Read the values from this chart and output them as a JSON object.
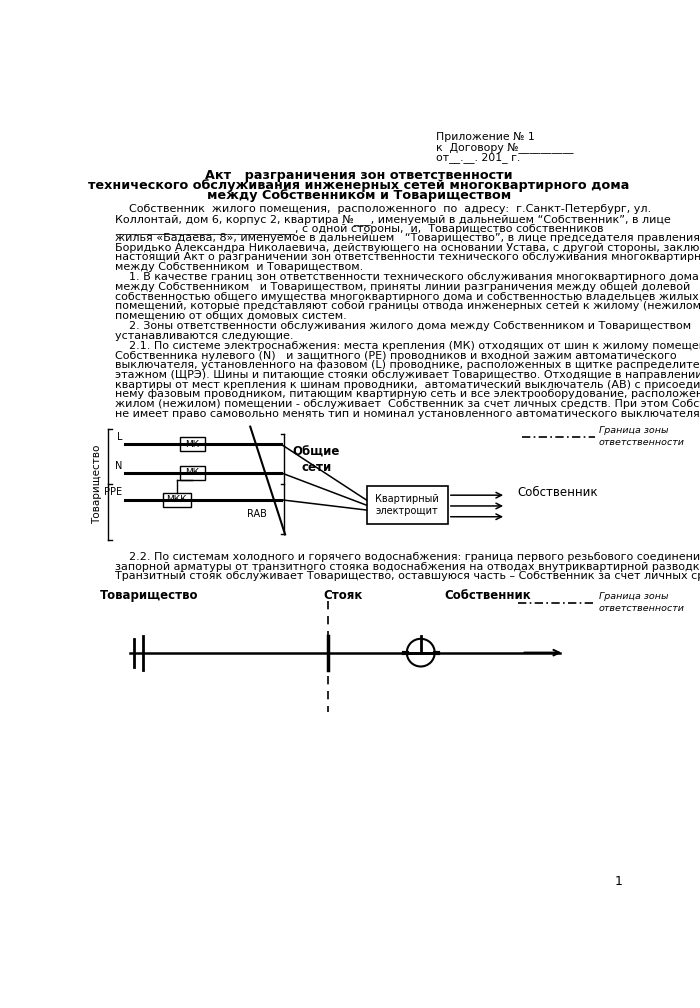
{
  "bg_color": "#ffffff",
  "text_color": "#000000",
  "appendix_lines": [
    "Приложение № 1",
    "к  Договору №__________",
    "от__.__. 201_ г."
  ],
  "title_lines": [
    "Акт   разграничения зон ответственности",
    "технического обслуживания инженерных сетей многоквартирного дома",
    "между Собственником и Товариществом"
  ],
  "para1_lines": [
    "    Собственник  жилого помещения,  расположенного  по  адресу:  г.Санкт-Петербург, ул.",
    "Коллонтай, дом 6, корпус 2, квартира №___, именуемый в дальнейшем “Собственник”, в лице",
    "________________________________, с одной стороны,  и,  Товарищество собственников",
    "жилья «Бадаева, 8», именуемое в дальнейшем   “Товарищество”, в лице председателя правления",
    "Боридько Александра Николаевича, действующего на основании Устава, с другой стороны, заключили",
    "настоящий Акт о разграничении зон ответственности технического обслуживания многоквартирного дома",
    "между Собственником  и Товариществом."
  ],
  "sec1_lines": [
    "    1. В качестве границ зон ответственности технического обслуживания многоквартирного дома",
    "между Собственником   и Товариществом, приняты линии разграничения между общей долевой",
    "собственностью общего имущества многоквартирного дома и собственностью владельцев жилых (нежилых)",
    "помещений, которые представляют собой границы отвода инженерных сетей к жилому (нежилому)",
    "помещению от общих домовых систем."
  ],
  "sec2_lines": [
    "    2. Зоны ответственности обслуживания жилого дома между Собственником и Товариществом",
    "устанавливаются следующие."
  ],
  "sec21_lines": [
    "    2.1. По системе электроснабжения: места крепления (МК) отходящих от шин к жилому помещению",
    "Собственника нулевого (N)   и защитного (PE) проводников и входной зажим автоматического",
    "выключателя, установленного на фазовом (L) проводнике, расположенных в щитке распределительном",
    "этажном (ЩРЭ). Шины и питающие стояки обслуживает Товарищество. Отходящие в направлении",
    "квартиры от мест крепления к шинам проводники,  автоматический выключатель (АВ) с присоединенным к",
    "нему фазовым проводником, питающим квартирную сеть и все электрооборудование, расположенное в",
    "жилом (нежилом) помещении - обслуживает  Собственник за счет личных средств. При этом Собственник",
    "не имеет право самовольно менять тип и номинал установленного автоматического выключателя."
  ],
  "sec22_lines": [
    "    2.2. По системам холодного и горячего водоснабжения: граница первого резьбового соединения",
    "запорной арматуры от транзитного стояка водоснабжения на отводах внутриквартирной разводки.",
    "Транзитный стояк обслуживает Товарищество, оставшуюся часть – Собственник за счет личных средств."
  ]
}
